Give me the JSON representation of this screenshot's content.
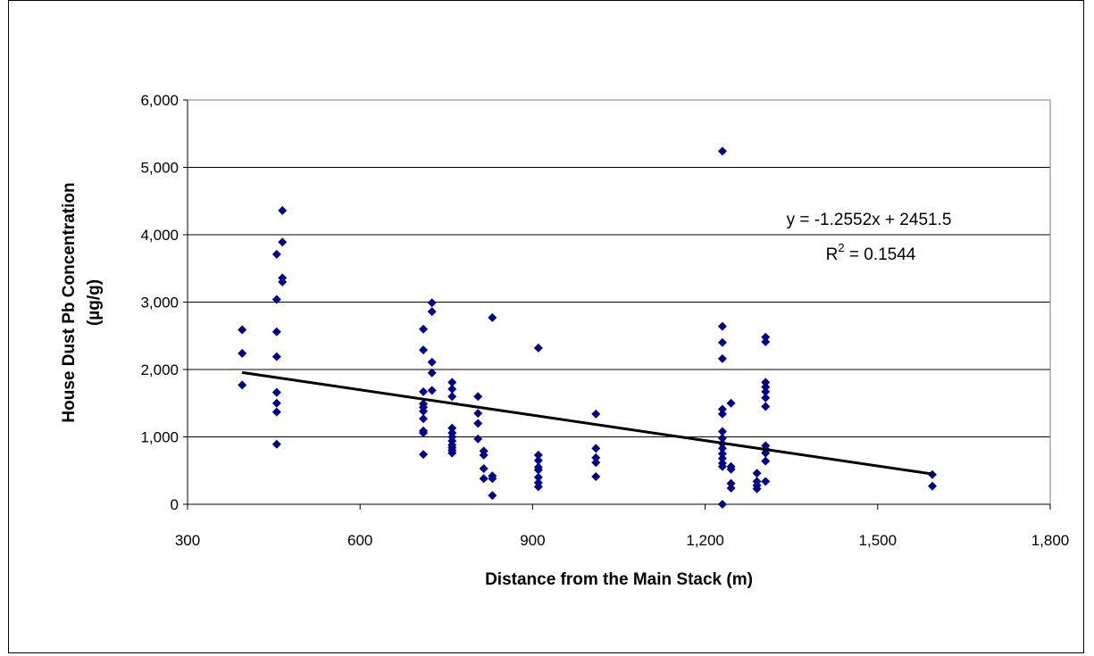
{
  "chart_data": {
    "type": "scatter",
    "title": "",
    "xlabel": "Distance from the Main Stack (m)",
    "ylabel_lines": [
      "House Dust Pb Concentration",
      "(µg/g)"
    ],
    "xlim": [
      300,
      1800
    ],
    "ylim": [
      0,
      6000
    ],
    "x_ticks": [
      300,
      600,
      900,
      1200,
      1500,
      1800
    ],
    "x_tick_labels": [
      "300",
      "600",
      "900",
      "1,200",
      "1,500",
      "1,800"
    ],
    "y_ticks": [
      0,
      1000,
      2000,
      3000,
      4000,
      5000,
      6000
    ],
    "y_tick_labels": [
      "0",
      "1,000",
      "2,000",
      "3,000",
      "4,000",
      "5,000",
      "6,000"
    ],
    "grid": "horizontal",
    "marker_color": "#00008B",
    "marker": "diamond",
    "trendline": {
      "slope": -1.2552,
      "intercept": 2451.5,
      "x_range": [
        395,
        1595
      ],
      "color": "#000000",
      "equation_label": "y = -1.2552x + 2451.5",
      "r2_prefix": "R",
      "r2_sup": "2",
      "r2_value": " = 0.1544"
    },
    "points": [
      [
        395,
        2590
      ],
      [
        395,
        2240
      ],
      [
        395,
        1770
      ],
      [
        455,
        3710
      ],
      [
        455,
        3040
      ],
      [
        455,
        2560
      ],
      [
        455,
        2190
      ],
      [
        455,
        1660
      ],
      [
        455,
        1500
      ],
      [
        455,
        1370
      ],
      [
        455,
        890
      ],
      [
        465,
        4360
      ],
      [
        465,
        3890
      ],
      [
        465,
        3360
      ],
      [
        465,
        3300
      ],
      [
        710,
        2600
      ],
      [
        710,
        2290
      ],
      [
        710,
        1670
      ],
      [
        710,
        1490
      ],
      [
        710,
        1440
      ],
      [
        710,
        1380
      ],
      [
        710,
        1270
      ],
      [
        710,
        1090
      ],
      [
        710,
        1060
      ],
      [
        710,
        740
      ],
      [
        725,
        2990
      ],
      [
        725,
        2860
      ],
      [
        725,
        2110
      ],
      [
        725,
        1950
      ],
      [
        725,
        1690
      ],
      [
        760,
        1810
      ],
      [
        760,
        1710
      ],
      [
        760,
        1600
      ],
      [
        760,
        1130
      ],
      [
        760,
        1060
      ],
      [
        760,
        1000
      ],
      [
        760,
        940
      ],
      [
        760,
        880
      ],
      [
        760,
        840
      ],
      [
        760,
        800
      ],
      [
        760,
        760
      ],
      [
        805,
        1600
      ],
      [
        805,
        1350
      ],
      [
        805,
        1200
      ],
      [
        805,
        970
      ],
      [
        815,
        790
      ],
      [
        815,
        730
      ],
      [
        815,
        530
      ],
      [
        815,
        380
      ],
      [
        830,
        2770
      ],
      [
        830,
        420
      ],
      [
        830,
        380
      ],
      [
        830,
        130
      ],
      [
        910,
        2320
      ],
      [
        910,
        730
      ],
      [
        910,
        650
      ],
      [
        910,
        550
      ],
      [
        910,
        510
      ],
      [
        910,
        400
      ],
      [
        910,
        320
      ],
      [
        910,
        260
      ],
      [
        1010,
        1340
      ],
      [
        1010,
        830
      ],
      [
        1010,
        690
      ],
      [
        1010,
        620
      ],
      [
        1010,
        410
      ],
      [
        1230,
        5240
      ],
      [
        1230,
        2640
      ],
      [
        1230,
        2400
      ],
      [
        1230,
        2160
      ],
      [
        1230,
        1410
      ],
      [
        1230,
        1340
      ],
      [
        1230,
        1080
      ],
      [
        1230,
        980
      ],
      [
        1230,
        900
      ],
      [
        1230,
        830
      ],
      [
        1230,
        750
      ],
      [
        1230,
        680
      ],
      [
        1230,
        610
      ],
      [
        1230,
        560
      ],
      [
        1230,
        0
      ],
      [
        1245,
        1500
      ],
      [
        1245,
        560
      ],
      [
        1245,
        520
      ],
      [
        1245,
        310
      ],
      [
        1245,
        240
      ],
      [
        1290,
        460
      ],
      [
        1290,
        340
      ],
      [
        1290,
        280
      ],
      [
        1290,
        230
      ],
      [
        1305,
        2480
      ],
      [
        1305,
        2410
      ],
      [
        1305,
        1810
      ],
      [
        1305,
        1740
      ],
      [
        1305,
        1670
      ],
      [
        1305,
        1580
      ],
      [
        1305,
        1450
      ],
      [
        1305,
        870
      ],
      [
        1305,
        820
      ],
      [
        1305,
        760
      ],
      [
        1305,
        640
      ],
      [
        1305,
        340
      ],
      [
        1595,
        440
      ],
      [
        1595,
        270
      ]
    ]
  }
}
